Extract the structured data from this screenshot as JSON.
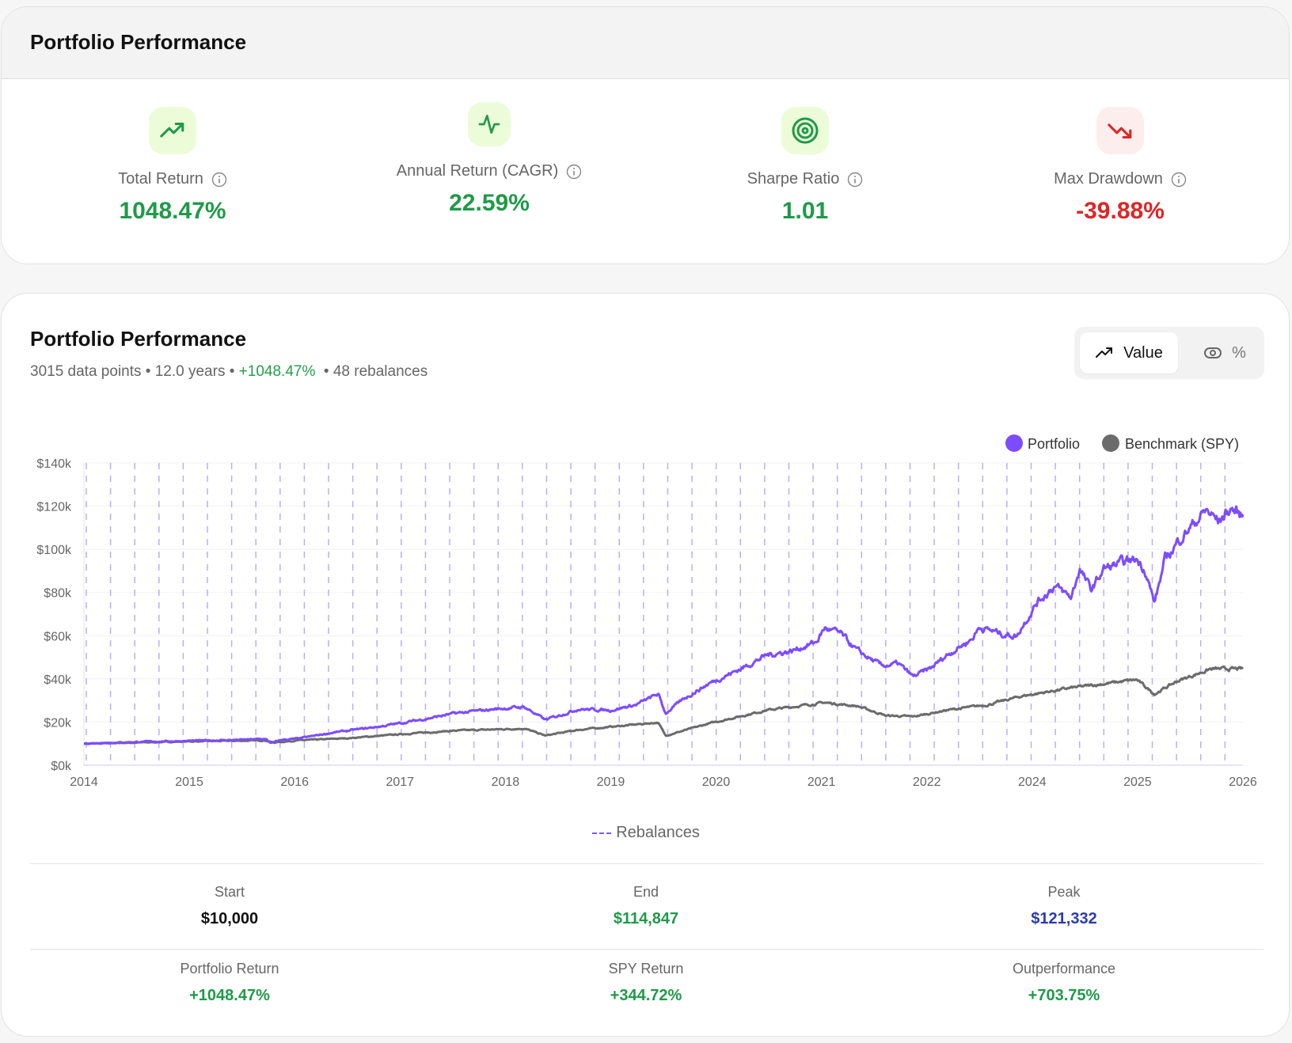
{
  "summary": {
    "title": "Portfolio Performance",
    "metrics": [
      {
        "label": "Total Return",
        "value": "1048.47%",
        "icon": "trending-up-icon",
        "tone": "positive"
      },
      {
        "label": "Annual Return (CAGR)",
        "value": "22.59%",
        "icon": "activity-icon",
        "tone": "positive"
      },
      {
        "label": "Sharpe Ratio",
        "value": "1.01",
        "icon": "target-icon",
        "tone": "positive"
      },
      {
        "label": "Max Drawdown",
        "value": "-39.88%",
        "icon": "trending-down-icon",
        "tone": "negative"
      }
    ]
  },
  "performance": {
    "title": "Portfolio Performance",
    "subtitle": {
      "data_points": "3015 data points",
      "sep1": " • ",
      "years": "12.0 years",
      "sep2": " • ",
      "return": "+1048.47%",
      "sep3": "  • ",
      "rebalances": "48 rebalances"
    },
    "toggle": {
      "value_label": "Value",
      "percent_label": "%",
      "selected": "Value"
    },
    "rebalance_legend": "Rebalances",
    "stats_row1": [
      {
        "label": "Start",
        "value": "$10,000"
      },
      {
        "label": "End",
        "value": "$114,847"
      },
      {
        "label": "Peak",
        "value": "$121,332"
      }
    ],
    "stats_row2": [
      {
        "label": "Portfolio Return",
        "value": "+1048.47%"
      },
      {
        "label": "SPY Return",
        "value": "+344.72%"
      },
      {
        "label": "Outperformance",
        "value": "+703.75%"
      }
    ]
  },
  "colors": {
    "portfolio": "#7c4dff",
    "benchmark": "#6b6b6b",
    "rebalance": "#b9aef7",
    "positive": "#1f9a48",
    "negative": "#dc2626"
  },
  "chart_data": {
    "type": "line",
    "x_ticks": [
      "2014",
      "2015",
      "2016",
      "2017",
      "2018",
      "2019",
      "2020",
      "2021",
      "2022",
      "2024",
      "2025",
      "2026"
    ],
    "y_ticks": [
      "$0k",
      "$20k",
      "$40k",
      "$60k",
      "$80k",
      "$100k",
      "$120k",
      "$140k"
    ],
    "ylim": [
      0,
      140000
    ],
    "x_unit": "tick index (0 = 2014 … 11 = 2026)",
    "legend": [
      "Portfolio",
      "Benchmark (SPY)"
    ],
    "legend_position": "top-right",
    "rebalance_count": 48,
    "series": [
      {
        "name": "Portfolio",
        "points": [
          [
            0,
            10000
          ],
          [
            0.5,
            10800
          ],
          [
            1,
            11300
          ],
          [
            1.5,
            11800
          ],
          [
            1.72,
            12200
          ],
          [
            1.72,
            12000
          ],
          [
            1.73,
            12000
          ],
          [
            1.75,
            11000
          ],
          [
            1.78,
            10300
          ],
          [
            1.88,
            11800
          ],
          [
            2.03,
            12300
          ],
          [
            2.35,
            15000
          ],
          [
            2.82,
            18000
          ],
          [
            3.13,
            20500
          ],
          [
            3.52,
            24000
          ],
          [
            3.9,
            26000
          ],
          [
            4.18,
            27000
          ],
          [
            4.38,
            21000
          ],
          [
            4.69,
            26000
          ],
          [
            5.0,
            25500
          ],
          [
            5.24,
            28000
          ],
          [
            5.45,
            33000
          ],
          [
            5.52,
            24000
          ],
          [
            5.7,
            31000
          ],
          [
            5.94,
            38000
          ],
          [
            6.25,
            45000
          ],
          [
            6.48,
            51000
          ],
          [
            6.72,
            53000
          ],
          [
            6.95,
            57000
          ],
          [
            7.03,
            63500
          ],
          [
            7.18,
            61000
          ],
          [
            7.34,
            53000
          ],
          [
            7.57,
            46000
          ],
          [
            7.73,
            47000
          ],
          [
            7.87,
            41000
          ],
          [
            8.04,
            45000
          ],
          [
            8.19,
            51000
          ],
          [
            8.43,
            58600
          ],
          [
            8.5,
            64000
          ],
          [
            8.74,
            60500
          ],
          [
            8.86,
            60000
          ],
          [
            8.9,
            64000
          ],
          [
            9.05,
            75700
          ],
          [
            9.21,
            83000
          ],
          [
            9.37,
            77600
          ],
          [
            9.45,
            91000
          ],
          [
            9.56,
            81000
          ],
          [
            9.68,
            91000
          ],
          [
            9.99,
            95500
          ],
          [
            10.07,
            91000
          ],
          [
            10.16,
            75000
          ],
          [
            10.26,
            95000
          ],
          [
            10.42,
            106000
          ],
          [
            10.65,
            118000
          ],
          [
            10.77,
            113000
          ],
          [
            10.89,
            119000
          ],
          [
            11.0,
            114847
          ]
        ]
      },
      {
        "name": "Benchmark (SPY)",
        "points": [
          [
            0,
            10000
          ],
          [
            1,
            11000
          ],
          [
            1.72,
            11500
          ],
          [
            1.8,
            10500
          ],
          [
            2.03,
            11500
          ],
          [
            2.5,
            12500
          ],
          [
            3.13,
            14800
          ],
          [
            3.52,
            16000
          ],
          [
            4.18,
            17000
          ],
          [
            4.38,
            13700
          ],
          [
            4.69,
            16400
          ],
          [
            5.45,
            19800
          ],
          [
            5.52,
            13700
          ],
          [
            5.94,
            19400
          ],
          [
            6.48,
            25500
          ],
          [
            7.03,
            29000
          ],
          [
            7.34,
            27400
          ],
          [
            7.61,
            23000
          ],
          [
            7.87,
            22500
          ],
          [
            8.19,
            25500
          ],
          [
            8.58,
            28000
          ],
          [
            8.9,
            32000
          ],
          [
            9.37,
            35800
          ],
          [
            9.99,
            39600
          ],
          [
            10.16,
            33000
          ],
          [
            10.38,
            39000
          ],
          [
            10.69,
            44500
          ],
          [
            11.0,
            44600
          ]
        ]
      }
    ]
  }
}
